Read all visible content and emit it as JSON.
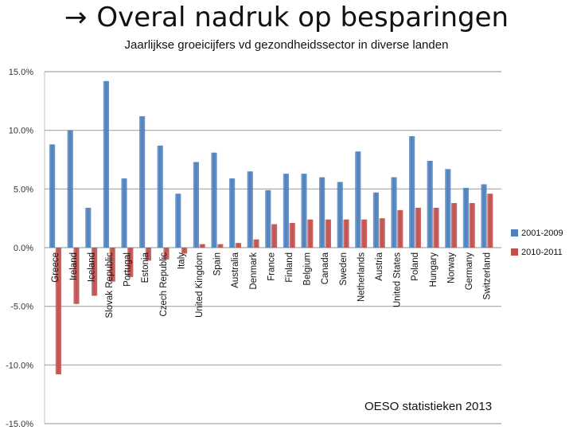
{
  "slide": {
    "arrow": "→",
    "title": "Overal nadruk op besparingen",
    "subtitle": "Jaarlijkse groeicijfers vd  gezondheidssector in diverse landen",
    "source": "OESO statistieken 2013"
  },
  "colors": {
    "series1": "#4f81bd",
    "series2": "#c0504d",
    "gridline": "#a6a6a6",
    "axis_text": "#333333"
  },
  "chart_data": {
    "type": "bar",
    "title": "",
    "xlabel": "",
    "ylabel": "",
    "ylim": [
      -15,
      15
    ],
    "yticks": [
      15,
      10,
      5,
      0,
      -5,
      -10,
      -15
    ],
    "ytick_labels": [
      "15.0%",
      "10.0%",
      "5.0%",
      "0.0%",
      "-5.0%",
      "-10.0%",
      "-15.0%"
    ],
    "grid": true,
    "legend_position": "right",
    "categories": [
      "Greece",
      "Ireland",
      "Iceland",
      "Slovak Republic",
      "Portugal",
      "Estonia",
      "Czech Republic",
      "Italy",
      "United Kingdom",
      "Spain",
      "Australia",
      "Denmark",
      "France",
      "Finland",
      "Belgium",
      "Canada",
      "Sweden",
      "Netherlands",
      "Austria",
      "United States",
      "Poland",
      "Hungary",
      "Norway",
      "Germany",
      "Switzerland"
    ],
    "series": [
      {
        "name": "2001-2009",
        "values": [
          8.8,
          10.0,
          3.4,
          14.2,
          5.9,
          11.2,
          8.7,
          4.6,
          7.3,
          8.1,
          5.9,
          6.5,
          4.9,
          6.3,
          6.3,
          6.0,
          5.6,
          8.2,
          4.7,
          6.0,
          9.5,
          7.4,
          6.7,
          5.1,
          5.4
        ]
      },
      {
        "name": "2010-2011",
        "values": [
          -10.8,
          -4.8,
          -4.1,
          -2.9,
          -2.5,
          -1.1,
          -1.0,
          -0.5,
          0.3,
          0.3,
          0.4,
          0.7,
          2.0,
          2.1,
          2.4,
          2.4,
          2.4,
          2.4,
          2.5,
          3.2,
          3.4,
          3.4,
          3.8,
          3.8,
          4.6
        ]
      }
    ]
  }
}
